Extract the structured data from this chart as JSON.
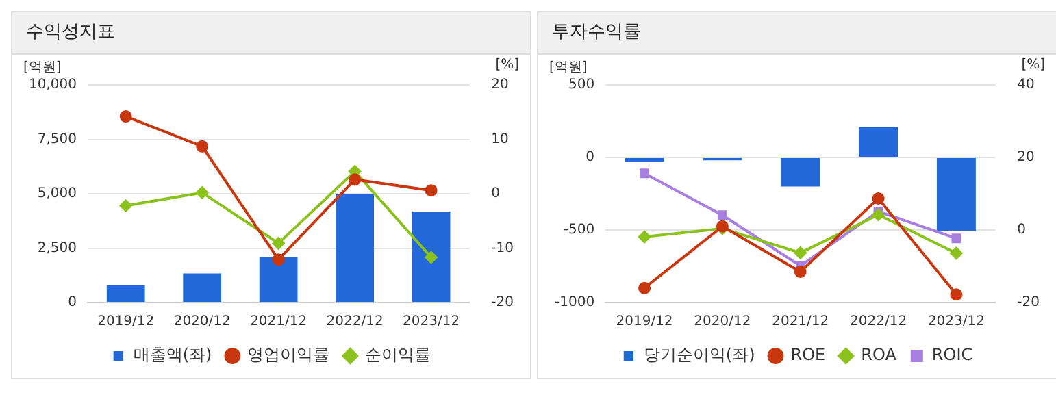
{
  "chart_data": [
    {
      "type": "bar",
      "title": "수익성지표",
      "ylabel": "[억원]",
      "y2label": "[%]",
      "categories": [
        "2019/12",
        "2020/12",
        "2021/12",
        "2022/12",
        "2023/12"
      ],
      "series": [
        {
          "name": "매출액(좌)",
          "color": "#2368d9",
          "values": [
            800,
            1340,
            2080,
            4980,
            4180
          ]
        },
        {
          "name": "영업이익률",
          "type": "line",
          "axis": "y2",
          "marker": "circle",
          "color": "#c9370f",
          "values": [
            14.2,
            8.7,
            -12.1,
            2.6,
            0.6
          ]
        },
        {
          "name": "순이익률",
          "type": "line",
          "axis": "y2",
          "marker": "diamond",
          "color": "#8bc21c",
          "values": [
            -2.2,
            0.2,
            -9.1,
            4.1,
            -11.7
          ]
        }
      ],
      "ylim": [
        0,
        10000
      ],
      "yticks": [
        {
          "value": 0,
          "label": "0"
        },
        {
          "value": 2500,
          "label": "2,500"
        },
        {
          "value": 5000,
          "label": "5,000"
        },
        {
          "value": 7500,
          "label": "7,500"
        },
        {
          "value": 10000,
          "label": "10,000"
        }
      ],
      "y2lim": [
        -20,
        20
      ],
      "y2ticks": [
        -20,
        -10,
        0,
        10,
        20
      ],
      "grid": "y",
      "legend": "bottom"
    },
    {
      "type": "bar",
      "title": "투자수익률",
      "ylabel": "[억원]",
      "y2label": "[%]",
      "categories": [
        "2019/12",
        "2020/12",
        "2021/12",
        "2022/12",
        "2023/12"
      ],
      "series": [
        {
          "name": "당기순이익(좌)",
          "color": "#2368d9",
          "values": [
            -30,
            -20,
            -200,
            210,
            -510
          ]
        },
        {
          "name": "ROE",
          "type": "line",
          "axis": "y2",
          "marker": "circle",
          "color": "#c9370f",
          "values": [
            -16,
            1.0,
            -11.5,
            8.7,
            -17.8
          ]
        },
        {
          "name": "ROA",
          "type": "line",
          "axis": "y2",
          "marker": "diamond",
          "color": "#8bc21c",
          "values": [
            -1.9,
            0.4,
            -6.3,
            4.2,
            -6.4
          ]
        },
        {
          "name": "ROIC",
          "type": "line",
          "axis": "y2",
          "marker": "square",
          "color": "#a77fe0",
          "values": [
            15.6,
            4.1,
            -9.9,
            5.1,
            -2.3
          ]
        }
      ],
      "ylim": [
        -1000,
        500
      ],
      "yticks": [
        -1000,
        -500,
        0,
        500
      ],
      "y2lim": [
        -20,
        40
      ],
      "y2ticks": [
        -20,
        0,
        20,
        40
      ],
      "grid": "y",
      "legend": "bottom"
    }
  ]
}
